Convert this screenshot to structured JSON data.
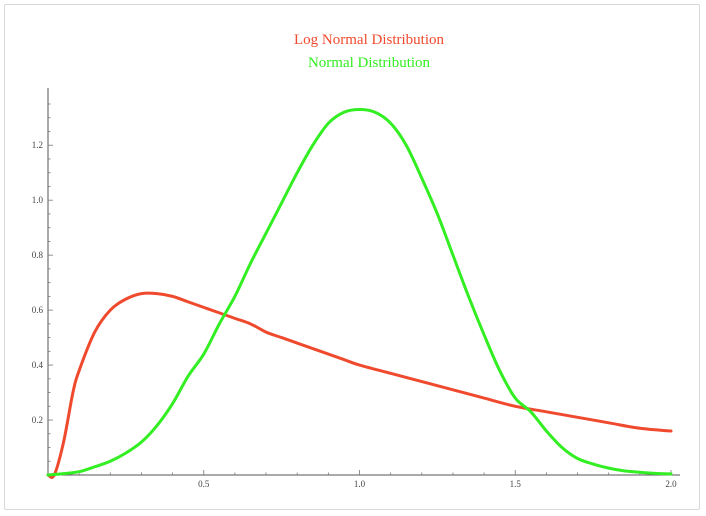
{
  "chart_data": {
    "type": "line",
    "title": "",
    "xlabel": "",
    "ylabel": "",
    "xlim": [
      0,
      2.0
    ],
    "ylim": [
      0,
      1.35
    ],
    "xticks": [
      0.5,
      1.0,
      1.5,
      2.0
    ],
    "xtick_labels": [
      "0.5",
      "1.0",
      "1.5",
      "2.0"
    ],
    "yticks": [
      0.2,
      0.4,
      0.6,
      0.8,
      1.0,
      1.2
    ],
    "ytick_labels": [
      "0.2",
      "0.4",
      "0.6",
      "0.8",
      "1.0",
      "1.2"
    ],
    "grid": false,
    "legend_placement": "top-center",
    "series": [
      {
        "name": "Log Normal Distribution",
        "color": "#f04a2e",
        "x": [
          0.0,
          0.02,
          0.05,
          0.08,
          0.1,
          0.15,
          0.2,
          0.25,
          0.3,
          0.35,
          0.4,
          0.45,
          0.5,
          0.55,
          0.6,
          0.65,
          0.7,
          0.75,
          0.8,
          0.85,
          0.9,
          0.95,
          1.0,
          1.1,
          1.2,
          1.3,
          1.4,
          1.5,
          1.6,
          1.7,
          1.8,
          1.9,
          2.0
        ],
        "y": [
          0.0,
          0.0,
          0.12,
          0.3,
          0.38,
          0.52,
          0.6,
          0.64,
          0.66,
          0.66,
          0.65,
          0.63,
          0.61,
          0.59,
          0.57,
          0.55,
          0.52,
          0.5,
          0.48,
          0.46,
          0.44,
          0.42,
          0.4,
          0.37,
          0.34,
          0.31,
          0.28,
          0.25,
          0.23,
          0.21,
          0.19,
          0.17,
          0.16
        ]
      },
      {
        "name": "Normal Distribution",
        "color": "#33ee22",
        "x": [
          0.0,
          0.05,
          0.1,
          0.15,
          0.2,
          0.25,
          0.3,
          0.35,
          0.4,
          0.45,
          0.5,
          0.55,
          0.6,
          0.65,
          0.7,
          0.75,
          0.8,
          0.85,
          0.9,
          0.95,
          1.0,
          1.05,
          1.1,
          1.15,
          1.2,
          1.25,
          1.3,
          1.35,
          1.4,
          1.45,
          1.5,
          1.55,
          1.6,
          1.65,
          1.7,
          1.75,
          1.8,
          1.85,
          1.9,
          1.95,
          2.0
        ],
        "y": [
          0.0,
          0.005,
          0.012,
          0.03,
          0.05,
          0.08,
          0.12,
          0.18,
          0.26,
          0.36,
          0.44,
          0.55,
          0.65,
          0.77,
          0.88,
          0.99,
          1.1,
          1.2,
          1.28,
          1.32,
          1.33,
          1.32,
          1.28,
          1.2,
          1.08,
          0.95,
          0.8,
          0.65,
          0.51,
          0.38,
          0.28,
          0.23,
          0.16,
          0.1,
          0.06,
          0.04,
          0.025,
          0.015,
          0.01,
          0.006,
          0.004
        ]
      }
    ]
  }
}
